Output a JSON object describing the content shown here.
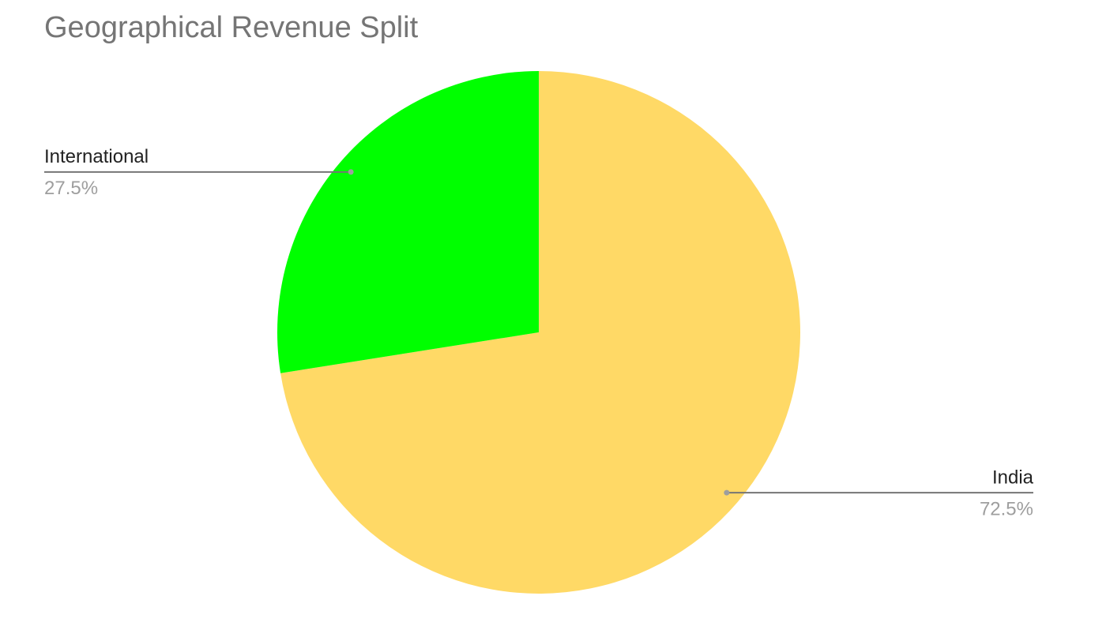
{
  "chart_data": {
    "type": "pie",
    "title": "Geographical Revenue Split",
    "categories": [
      "India",
      "International"
    ],
    "values": [
      72.5,
      27.5
    ],
    "value_labels": [
      "72.5%",
      "27.5%"
    ],
    "colors": [
      "#ffd966",
      "#00ff00"
    ]
  }
}
